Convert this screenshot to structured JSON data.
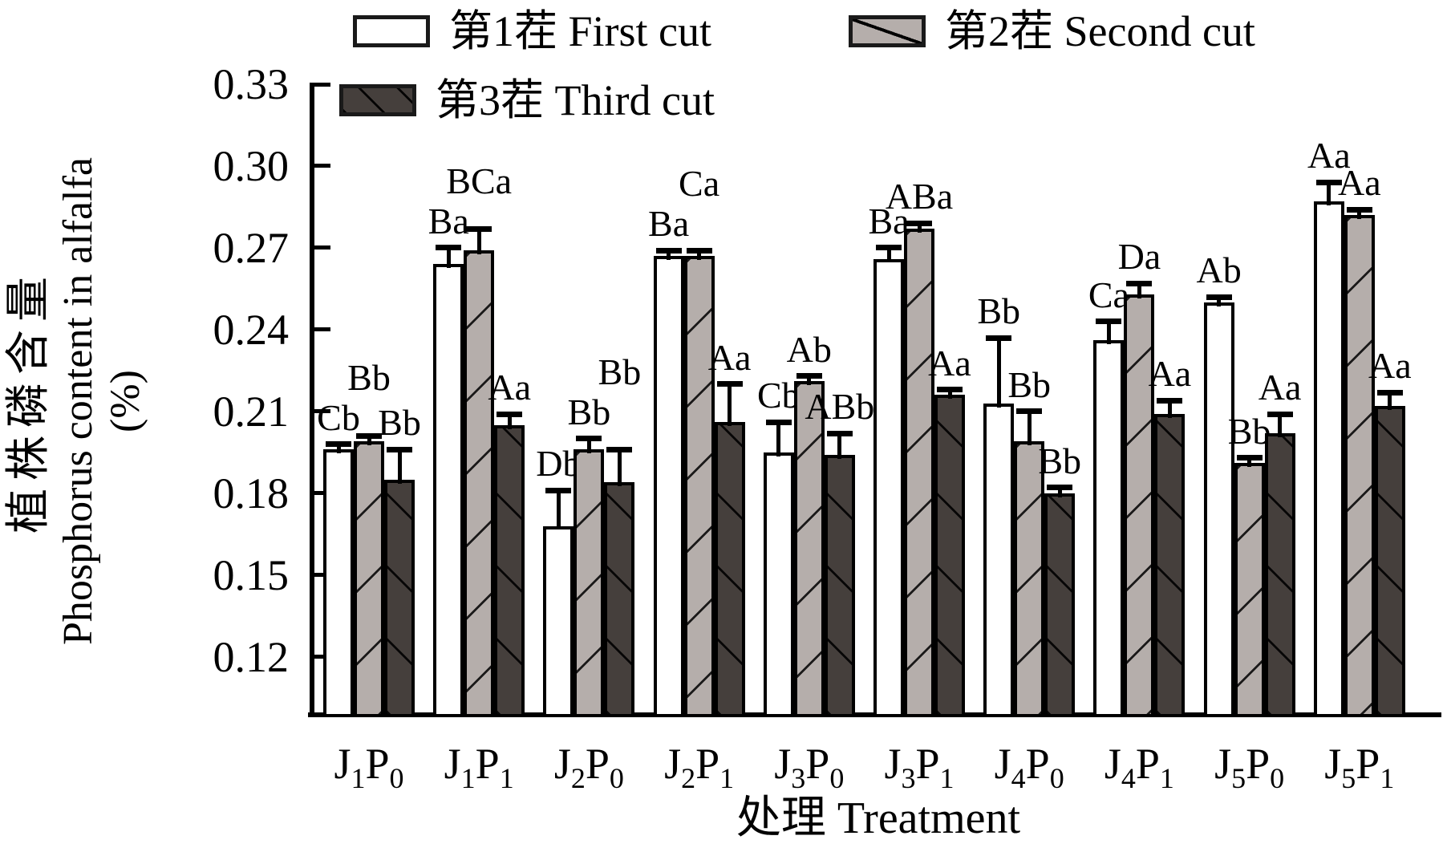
{
  "legend": {
    "items": [
      {
        "label": "第1茬 First cut",
        "swatch": "white-swatch"
      },
      {
        "label": "第2茬 Second cut",
        "swatch": "gray-hatch-swatch"
      },
      {
        "label": "第3茬 Third cut",
        "swatch": "dark-hatch-swatch"
      }
    ]
  },
  "y_axis": {
    "label_cn": "植株磷含量",
    "label_en": "Phosphorus content in alfalfa",
    "label_unit": "(%)"
  },
  "x_axis": {
    "title": "处理 Treatment"
  },
  "colors": {
    "bar_outline": "#000000",
    "first_cut_fill": "#ffffff",
    "second_cut_fill": "#b5aeab",
    "third_cut_fill": "#453f3c"
  },
  "chart_data": {
    "type": "bar",
    "title": "",
    "xlabel": "处理 Treatment",
    "ylabel": "植株磷含量 Phosphorus content in alfalfa (%)",
    "categories": [
      "J1P0",
      "J1P1",
      "J2P0",
      "J2P1",
      "J3P0",
      "J3P1",
      "J4P0",
      "J4P1",
      "J5P0",
      "J5P1"
    ],
    "ylim": [
      0.099,
      0.33
    ],
    "yticks": [
      0.12,
      0.15,
      0.18,
      0.21,
      0.24,
      0.27,
      0.3,
      0.33
    ],
    "grid": false,
    "legend_position": "top",
    "series": [
      {
        "name": "第1茬 First cut",
        "fill": "white",
        "values": [
          0.196,
          0.264,
          0.168,
          0.267,
          0.195,
          0.266,
          0.213,
          0.236,
          0.25,
          0.287
        ],
        "error_top": [
          0.198,
          0.27,
          0.181,
          0.269,
          0.206,
          0.27,
          0.237,
          0.243,
          0.252,
          0.294
        ],
        "letters": [
          "Cb",
          "Ba",
          "Db",
          "Ba",
          "Cb",
          "Ba",
          "Bb",
          "Ca",
          "Ab",
          "Aa"
        ]
      },
      {
        "name": "第2茬 Second cut",
        "fill": "gray",
        "values": [
          0.199,
          0.269,
          0.196,
          0.267,
          0.221,
          0.277,
          0.199,
          0.253,
          0.191,
          0.282
        ],
        "error_top": [
          0.201,
          0.277,
          0.2,
          0.269,
          0.223,
          0.279,
          0.21,
          0.257,
          0.193,
          0.284
        ],
        "letters": [
          "Bb",
          "BCa",
          "Bb",
          "Ca",
          "Ab",
          "ABa",
          "Bb",
          "Da",
          "Bb",
          "Aa"
        ]
      },
      {
        "name": "第3茬 Third cut",
        "fill": "dark",
        "values": [
          0.185,
          0.205,
          0.184,
          0.206,
          0.194,
          0.216,
          0.18,
          0.209,
          0.202,
          0.212
        ],
        "error_top": [
          0.196,
          0.209,
          0.196,
          0.22,
          0.202,
          0.218,
          0.182,
          0.214,
          0.209,
          0.217
        ],
        "letters": [
          "Bb",
          "Aa",
          "Bb",
          "Aa",
          "ABb",
          "Aa",
          "Bb",
          "Aa",
          "Aa",
          "Aa"
        ]
      }
    ]
  }
}
